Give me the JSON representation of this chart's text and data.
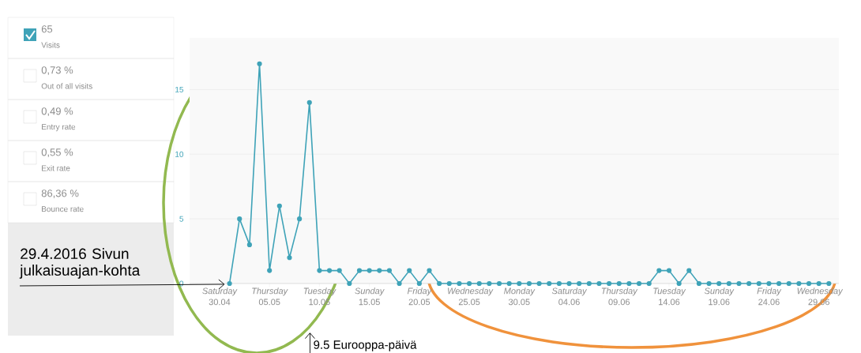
{
  "chart_data": {
    "type": "line",
    "x": [
      "2016-05-01",
      "2016-05-02",
      "2016-05-03",
      "2016-05-04",
      "2016-05-05",
      "2016-05-06",
      "2016-05-07",
      "2016-05-08",
      "2016-05-09",
      "2016-05-10",
      "2016-05-11",
      "2016-05-12",
      "2016-05-13",
      "2016-05-14",
      "2016-05-15",
      "2016-05-16",
      "2016-05-17",
      "2016-05-18",
      "2016-05-19",
      "2016-05-20",
      "2016-05-21",
      "2016-05-22",
      "2016-05-23",
      "2016-05-24",
      "2016-05-25",
      "2016-05-26",
      "2016-05-27",
      "2016-05-28",
      "2016-05-29",
      "2016-05-30",
      "2016-05-31",
      "2016-06-01",
      "2016-06-02",
      "2016-06-03",
      "2016-06-04",
      "2016-06-05",
      "2016-06-06",
      "2016-06-07",
      "2016-06-08",
      "2016-06-09",
      "2016-06-10",
      "2016-06-11",
      "2016-06-12",
      "2016-06-13",
      "2016-06-14",
      "2016-06-15",
      "2016-06-16",
      "2016-06-17",
      "2016-06-18",
      "2016-06-19",
      "2016-06-20",
      "2016-06-21",
      "2016-06-22",
      "2016-06-23",
      "2016-06-24",
      "2016-06-25",
      "2016-06-26",
      "2016-06-27",
      "2016-06-28",
      "2016-06-29",
      "2016-06-30"
    ],
    "series": [
      {
        "color": "#3fa3b8",
        "values": [
          0,
          5,
          3,
          17,
          1,
          6,
          2,
          5,
          14,
          1,
          1,
          1,
          0,
          1,
          1,
          1,
          1,
          0,
          1,
          0,
          1,
          0,
          0,
          0,
          0,
          0,
          0,
          0,
          0,
          0,
          0,
          0,
          0,
          0,
          0,
          0,
          0,
          0,
          0,
          0,
          0,
          0,
          0,
          1,
          1,
          0,
          1,
          0,
          0,
          0,
          0,
          0,
          0,
          0,
          0,
          0,
          0,
          0,
          0,
          0,
          0
        ]
      }
    ],
    "xlim": [
      "2016-04-27",
      "2016-07-01"
    ],
    "xticks": [
      {
        "value": "2016-04-30",
        "label": "*Saturday* 30.04"
      },
      {
        "value": "2016-05-05",
        "label": "*Thursday* 05.05"
      },
      {
        "value": "2016-05-10",
        "label": "*Tuesday* 10.05"
      },
      {
        "value": "2016-05-15",
        "label": "*Sunday* 15.05"
      },
      {
        "value": "2016-05-20",
        "label": "*Friday* 20.05"
      },
      {
        "value": "2016-05-25",
        "label": "*Wednesday* 25.05"
      },
      {
        "value": "2016-05-30",
        "label": "*Monday* 30.05"
      },
      {
        "value": "2016-06-04",
        "label": "*Saturday* 04.06"
      },
      {
        "value": "2016-06-09",
        "label": "*Thursday* 09.06"
      },
      {
        "value": "2016-06-14",
        "label": "*Tuesday* 14.06"
      },
      {
        "value": "2016-06-19",
        "label": "*Sunday* 19.06"
      },
      {
        "value": "2016-06-24",
        "label": "*Friday* 24.06"
      },
      {
        "value": "2016-06-29",
        "label": "*Wednesday* 29.06"
      }
    ],
    "ylim": [
      0,
      19
    ],
    "yticks": [
      0,
      5,
      10,
      15
    ],
    "grid": "y",
    "marker": "circle",
    "line_style": "solid",
    "annotations": [
      "65",
      "Visits",
      "0,73 %",
      "Out of all visits",
      "0,49 %",
      "Entry rate",
      "0,55 %",
      "Exit rate",
      "86,36 %",
      "Bounce rate",
      {
        "text": "29.4.2016 Sivun julkaisuajan-kohta",
        "x": "2016-05-01",
        "y": 0
      },
      "9.5 Eurooppa-päivä"
    ]
  }
}
